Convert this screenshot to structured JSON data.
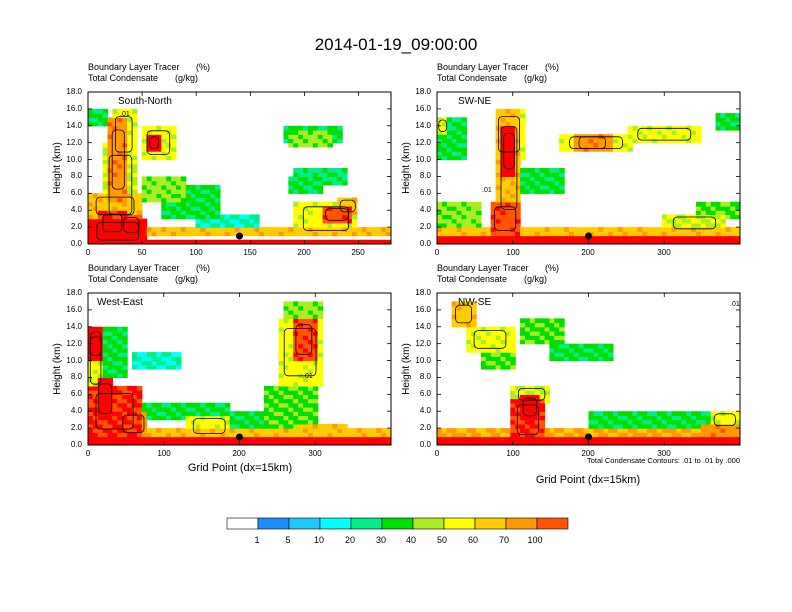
{
  "chart_data": {
    "type": "heatmap",
    "title": "2014-01-19_09:00:00",
    "xlabel": "Grid Point (dx=15km)",
    "footnote": "Total Condensate Contours: .01 to .01 by .000",
    "colorbar": {
      "labels": [
        "1",
        "5",
        "10",
        "20",
        "30",
        "40",
        "50",
        "60",
        "70",
        "100"
      ],
      "colors": [
        "#ffffff",
        "#1e8cff",
        "#1ec8ff",
        "#00ffff",
        "#00ee88",
        "#00dd00",
        "#aaee22",
        "#ffff00",
        "#ffcc00",
        "#ff9900",
        "#ff5500",
        "#ff0000"
      ]
    },
    "panels": [
      {
        "id": "south-north",
        "field1": "Boundary Layer Tracer",
        "unit1": "(%)",
        "field2": "Total Condensate",
        "unit2": "(g/kg)",
        "label": "South-North",
        "ylabel": "Height (km)",
        "xlim": [
          0,
          280
        ],
        "ylim": [
          0,
          18
        ],
        "xticks": [
          "0",
          "50",
          "100",
          "150",
          "200",
          "250"
        ],
        "xtick_values": [
          0,
          50,
          100,
          150,
          200,
          250
        ],
        "yticks": [
          "0.0",
          "2.0",
          "4.0",
          "6.0",
          "8.0",
          "10.0",
          "12.0",
          "14.0",
          "16.0",
          "18.0"
        ],
        "marker_x": 140,
        "contour_label": ".01",
        "blobs": [
          [
            0,
            0,
            280,
            0.7,
            1.0
          ],
          [
            0,
            0.8,
            280,
            1.4,
            0.6
          ],
          [
            0,
            0,
            55,
            3,
            0.9
          ],
          [
            0,
            3,
            50,
            3,
            0.6
          ],
          [
            15,
            2,
            30,
            10,
            0.45
          ],
          [
            20,
            5,
            16,
            10,
            0.7
          ],
          [
            22,
            10,
            22,
            6,
            0.5
          ],
          [
            50,
            5,
            40,
            3,
            0.4
          ],
          [
            70,
            3,
            50,
            4,
            0.3
          ],
          [
            100,
            1.5,
            60,
            2,
            0.2
          ],
          [
            10,
            1,
            25,
            3,
            0.85
          ],
          [
            30,
            1,
            20,
            2.5,
            0.8
          ],
          [
            50,
            10,
            30,
            4,
            0.5
          ],
          [
            55,
            11,
            12,
            2,
            0.95
          ],
          [
            0,
            14,
            20,
            2,
            0.3
          ],
          [
            190,
            1,
            60,
            4,
            0.5
          ],
          [
            215,
            2.5,
            30,
            2,
            0.8
          ],
          [
            230,
            3.5,
            20,
            2,
            0.6
          ],
          [
            180,
            12,
            55,
            2,
            0.3
          ],
          [
            185,
            11.5,
            40,
            2,
            0.4
          ],
          [
            190,
            7,
            50,
            2,
            0.25
          ],
          [
            185,
            6,
            30,
            2,
            0.3
          ]
        ]
      },
      {
        "id": "sw-ne",
        "field1": "Boundary Layer Tracer",
        "unit1": "(%)",
        "field2": "Total Condensate",
        "unit2": "(g/kg)",
        "label": "SW-NE",
        "ylabel": "Height (km)",
        "xlim": [
          0,
          400
        ],
        "ylim": [
          0,
          18
        ],
        "xticks": [
          "0",
          "100",
          "200",
          "300"
        ],
        "xtick_values": [
          0,
          100,
          200,
          300
        ],
        "yticks": [
          "0.0",
          "2.0",
          "4.0",
          "6.0",
          "8.0",
          "10.0",
          "12.0",
          "14.0",
          "16.0",
          "18.0"
        ],
        "marker_x": 200,
        "contour_label": ".01",
        "blobs": [
          [
            0,
            0,
            400,
            0.8,
            1.0
          ],
          [
            0,
            0.9,
            400,
            1.2,
            0.6
          ],
          [
            0,
            2,
            60,
            3,
            0.4
          ],
          [
            70,
            1,
            40,
            4,
            0.8
          ],
          [
            80,
            2,
            30,
            14,
            0.6
          ],
          [
            85,
            8,
            20,
            6,
            0.9
          ],
          [
            75,
            10,
            40,
            6,
            0.5
          ],
          [
            0,
            10,
            40,
            5,
            0.3
          ],
          [
            0,
            13,
            15,
            2,
            0.5
          ],
          [
            110,
            6,
            60,
            3,
            0.3
          ],
          [
            160,
            11,
            100,
            2,
            0.5
          ],
          [
            180,
            11,
            50,
            2,
            0.7
          ],
          [
            250,
            12,
            100,
            2,
            0.5
          ],
          [
            370,
            13.5,
            30,
            2,
            0.3
          ],
          [
            340,
            3,
            60,
            2,
            0.35
          ],
          [
            300,
            1.5,
            80,
            2,
            0.45
          ]
        ]
      },
      {
        "id": "west-east",
        "field1": "Boundary Layer Tracer",
        "unit1": "(%)",
        "field2": "Total Condensate",
        "unit2": "(g/kg)",
        "label": "West-East",
        "ylabel": "Height (km)",
        "xlim": [
          0,
          400
        ],
        "ylim": [
          0,
          18
        ],
        "xticks": [
          "0",
          "100",
          "200",
          "300"
        ],
        "xtick_values": [
          0,
          100,
          200,
          300
        ],
        "yticks": [
          "0.0",
          "2.0",
          "4.0",
          "6.0",
          "8.0",
          "10.0",
          "12.0",
          "14.0",
          "16.0",
          "18.0"
        ],
        "marker_x": 200,
        "contour_label": ".01",
        "blobs": [
          [
            0,
            0,
            400,
            0.8,
            1.0
          ],
          [
            0,
            0.9,
            400,
            1.0,
            0.6
          ],
          [
            0,
            1,
            70,
            6,
            0.85
          ],
          [
            10,
            3,
            25,
            5,
            0.9
          ],
          [
            40,
            1,
            40,
            3,
            0.7
          ],
          [
            0,
            6,
            20,
            8,
            0.5
          ],
          [
            0,
            10,
            20,
            4,
            0.9
          ],
          [
            20,
            8,
            30,
            6,
            0.3
          ],
          [
            60,
            9,
            60,
            2,
            0.2
          ],
          [
            70,
            3,
            120,
            2,
            0.3
          ],
          [
            130,
            1,
            60,
            2.5,
            0.5
          ],
          [
            190,
            2,
            40,
            2,
            0.3
          ],
          [
            230,
            2,
            70,
            5,
            0.35
          ],
          [
            250,
            7,
            60,
            8,
            0.5
          ],
          [
            270,
            10,
            30,
            5,
            0.8
          ],
          [
            260,
            15,
            50,
            2,
            0.4
          ],
          [
            280,
            1,
            60,
            1.5,
            0.6
          ]
        ]
      },
      {
        "id": "nw-se",
        "field1": "Boundary Layer Tracer",
        "unit1": "(%)",
        "field2": "Total Condensate",
        "unit2": "(g/kg)",
        "label": "NW-SE",
        "ylabel": "Height (km)",
        "xlim": [
          0,
          400
        ],
        "ylim": [
          0,
          18
        ],
        "xticks": [
          "0",
          "100",
          "200",
          "300"
        ],
        "xtick_values": [
          0,
          100,
          200,
          300
        ],
        "yticks": [
          "0.0",
          "2.0",
          "4.0",
          "6.0",
          "8.0",
          "10.0",
          "12.0",
          "14.0",
          "16.0",
          "18.0"
        ],
        "marker_x": 200,
        "contour_label": ".01",
        "blobs": [
          [
            0,
            0,
            400,
            0.9,
            1.0
          ],
          [
            0,
            0.9,
            400,
            1.0,
            0.65
          ],
          [
            100,
            0.5,
            40,
            5,
            0.85
          ],
          [
            110,
            3,
            25,
            3,
            0.95
          ],
          [
            100,
            5,
            50,
            2,
            0.45
          ],
          [
            20,
            14,
            30,
            3,
            0.6
          ],
          [
            40,
            11,
            60,
            3,
            0.5
          ],
          [
            60,
            9,
            40,
            3,
            0.35
          ],
          [
            70,
            10,
            30,
            4,
            0.25
          ],
          [
            110,
            12,
            60,
            3,
            0.35
          ],
          [
            150,
            10,
            80,
            2,
            0.3
          ],
          [
            200,
            2,
            200,
            2,
            0.3
          ],
          [
            360,
            2,
            40,
            2,
            0.5
          ],
          [
            350,
            1,
            50,
            1.5,
            0.7
          ]
        ]
      }
    ]
  }
}
